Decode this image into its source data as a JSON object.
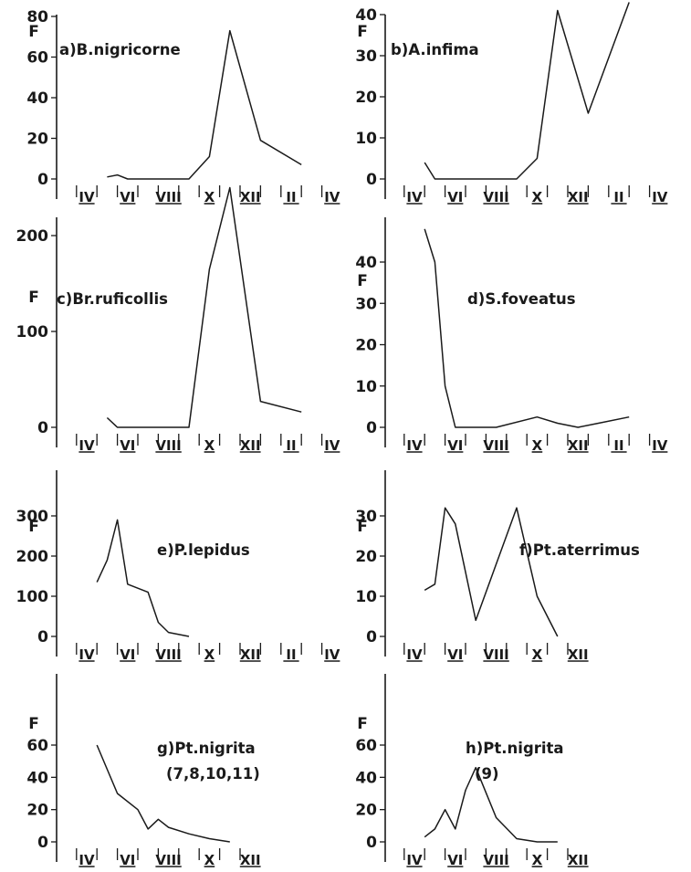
{
  "chart_data": [
    {
      "type": "line",
      "title": "a)B.nigricorne",
      "ylabel": "F",
      "ylim": [
        0,
        80
      ],
      "yticks": [
        0,
        20,
        40,
        60,
        80
      ],
      "month_labels": [
        "IV",
        "VI",
        "VIII",
        "X",
        "XII",
        "II",
        "IV"
      ],
      "x": [
        5.0,
        5.5,
        6.0,
        6.5,
        7.5,
        8.5,
        9.0,
        10.0,
        11.0,
        12.5,
        14.5
      ],
      "values": [
        1,
        2,
        0,
        0,
        0,
        0,
        0,
        11,
        73,
        19,
        7
      ]
    },
    {
      "type": "line",
      "title": "b)A.infima",
      "ylabel": "F",
      "ylim": [
        0,
        42
      ],
      "yticks": [
        0,
        10,
        20,
        30,
        40
      ],
      "month_labels": [
        "IV",
        "VI",
        "VIII",
        "X",
        "XII",
        "II",
        "IV"
      ],
      "x": [
        4.5,
        5.0,
        6.0,
        7.0,
        8.0,
        9.0,
        10.0,
        11.0,
        12.5,
        14.5
      ],
      "values": [
        4,
        0,
        0,
        0,
        0,
        0,
        5,
        41,
        16,
        43
      ]
    },
    {
      "type": "line",
      "title": "c)Br.ruficollis",
      "ylabel": "F",
      "ylim": [
        0,
        250
      ],
      "yticks": [
        0,
        100,
        200
      ],
      "month_labels": [
        "IV",
        "VI",
        "VIII",
        "X",
        "XII",
        "II",
        "IV"
      ],
      "x": [
        5.0,
        5.5,
        6.0,
        7.0,
        8.0,
        9.0,
        10.0,
        11.0,
        12.5,
        14.5
      ],
      "values": [
        10,
        0,
        0,
        0,
        0,
        0,
        165,
        250,
        27,
        16
      ]
    },
    {
      "type": "line",
      "title": "d)S.foveatus",
      "ylabel": "F",
      "ylim": [
        0,
        48
      ],
      "yticks": [
        0,
        10,
        20,
        30,
        40
      ],
      "month_labels": [
        "IV",
        "VI",
        "VIII",
        "X",
        "XII",
        "II",
        "IV"
      ],
      "x": [
        4.5,
        5.0,
        5.5,
        6.0,
        7.0,
        8.0,
        10.0,
        11.0,
        12.0,
        13.0,
        14.5
      ],
      "values": [
        48,
        40,
        10,
        0,
        0,
        0,
        2.5,
        1,
        0,
        1,
        2.5
      ]
    },
    {
      "type": "line",
      "title": "e)P.lepidus",
      "ylabel": "F",
      "ylim": [
        0,
        300
      ],
      "yticks": [
        0,
        100,
        200,
        300
      ],
      "month_labels": [
        "IV",
        "VI",
        "VIII",
        "X",
        "XII",
        "II",
        "IV"
      ],
      "x": [
        4.5,
        5.0,
        5.5,
        6.0,
        7.0,
        7.5,
        8.0,
        9.0
      ],
      "values": [
        135,
        190,
        290,
        130,
        110,
        35,
        10,
        0
      ]
    },
    {
      "type": "line",
      "title": "f)Pt.aterrimus",
      "ylabel": "F",
      "ylim": [
        0,
        32
      ],
      "yticks": [
        0,
        10,
        20,
        30
      ],
      "month_labels": [
        "IV",
        "VI",
        "VIII",
        "X",
        "XII"
      ],
      "x": [
        4.5,
        5.0,
        5.5,
        6.0,
        7.0,
        8.0,
        9.0,
        10.0,
        11.0
      ],
      "values": [
        11.5,
        13,
        32,
        28,
        4,
        18,
        32,
        10,
        0
      ]
    },
    {
      "type": "line",
      "title": "g)Pt.nigrita",
      "subtitle": "(7,8,10,11)",
      "ylabel": "F",
      "ylim": [
        0,
        60
      ],
      "yticks": [
        0,
        20,
        40,
        60
      ],
      "month_labels": [
        "IV",
        "VI",
        "VIII",
        "X",
        "XII"
      ],
      "x": [
        4.5,
        5.0,
        5.5,
        6.5,
        7.0,
        7.5,
        8.0,
        9.0,
        10.0,
        11.0
      ],
      "values": [
        60,
        45,
        30,
        20,
        8,
        14,
        9,
        5,
        2,
        0
      ]
    },
    {
      "type": "line",
      "title": "h)Pt.nigrita",
      "subtitle": "(9)",
      "ylabel": "F",
      "ylim": [
        0,
        60
      ],
      "yticks": [
        0,
        20,
        40,
        60
      ],
      "month_labels": [
        "IV",
        "VI",
        "VIII",
        "X",
        "XII"
      ],
      "x": [
        4.5,
        5.0,
        5.5,
        6.0,
        6.5,
        7.0,
        8.0,
        9.0,
        10.0,
        11.0
      ],
      "values": [
        3,
        8,
        20,
        8,
        32,
        46,
        15,
        2,
        0,
        0
      ]
    }
  ]
}
